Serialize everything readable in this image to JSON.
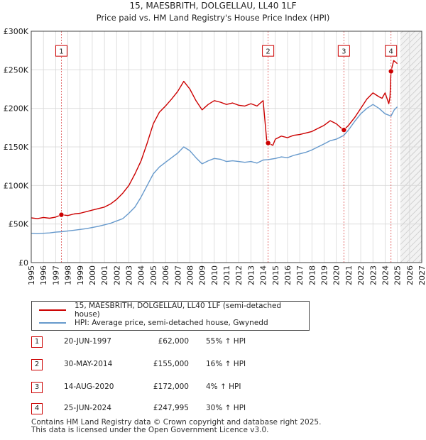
{
  "chart_data": {
    "type": "line",
    "title": "15, MAESBRITH, DOLGELLAU, LL40 1LF",
    "subtitle": "Price paid vs. HM Land Registry's House Price Index (HPI)",
    "xlim": [
      1995,
      2027
    ],
    "ylim": [
      0,
      300000
    ],
    "x_ticks": [
      1995,
      1996,
      1997,
      1998,
      1999,
      2000,
      2001,
      2002,
      2003,
      2004,
      2005,
      2006,
      2007,
      2008,
      2009,
      2010,
      2011,
      2012,
      2013,
      2014,
      2015,
      2016,
      2017,
      2018,
      2019,
      2020,
      2021,
      2022,
      2023,
      2024,
      2025,
      2026,
      2027
    ],
    "y_ticks": [
      0,
      50000,
      100000,
      150000,
      200000,
      250000,
      300000
    ],
    "y_tick_labels": [
      "£0",
      "£50K",
      "£100K",
      "£150K",
      "£200K",
      "£250K",
      "£300K"
    ],
    "forecast_start": 2025.25,
    "grid": true,
    "series": [
      {
        "name": "15, MAESBRITH, DOLGELLAU, LL40 1LF (semi-detached house)",
        "color": "#cc0000",
        "points": [
          [
            1995.0,
            58000
          ],
          [
            1995.5,
            57000
          ],
          [
            1996.0,
            58500
          ],
          [
            1996.5,
            57500
          ],
          [
            1997.0,
            59000
          ],
          [
            1997.47,
            62000
          ],
          [
            1998.0,
            61000
          ],
          [
            1998.5,
            63000
          ],
          [
            1999.0,
            64000
          ],
          [
            1999.5,
            66000
          ],
          [
            2000.0,
            68000
          ],
          [
            2000.5,
            70000
          ],
          [
            2001.0,
            72000
          ],
          [
            2001.5,
            76000
          ],
          [
            2002.0,
            82000
          ],
          [
            2002.5,
            90000
          ],
          [
            2003.0,
            100000
          ],
          [
            2003.5,
            115000
          ],
          [
            2004.0,
            132000
          ],
          [
            2004.5,
            155000
          ],
          [
            2005.0,
            180000
          ],
          [
            2005.5,
            195000
          ],
          [
            2006.0,
            203000
          ],
          [
            2006.5,
            212000
          ],
          [
            2007.0,
            222000
          ],
          [
            2007.5,
            235000
          ],
          [
            2008.0,
            225000
          ],
          [
            2008.5,
            210000
          ],
          [
            2009.0,
            198000
          ],
          [
            2009.5,
            205000
          ],
          [
            2010.0,
            210000
          ],
          [
            2010.5,
            208000
          ],
          [
            2011.0,
            205000
          ],
          [
            2011.5,
            207000
          ],
          [
            2012.0,
            204000
          ],
          [
            2012.5,
            203000
          ],
          [
            2013.0,
            206000
          ],
          [
            2013.5,
            203000
          ],
          [
            2014.0,
            210000
          ],
          [
            2014.3,
            158000
          ],
          [
            2014.41,
            155000
          ],
          [
            2014.8,
            152000
          ],
          [
            2015.0,
            160000
          ],
          [
            2015.5,
            164000
          ],
          [
            2016.0,
            162000
          ],
          [
            2016.5,
            165000
          ],
          [
            2017.0,
            166000
          ],
          [
            2017.5,
            168000
          ],
          [
            2018.0,
            170000
          ],
          [
            2018.5,
            174000
          ],
          [
            2019.0,
            178000
          ],
          [
            2019.5,
            184000
          ],
          [
            2020.0,
            180000
          ],
          [
            2020.5,
            173000
          ],
          [
            2020.62,
            172000
          ],
          [
            2021.0,
            178000
          ],
          [
            2021.5,
            188000
          ],
          [
            2022.0,
            200000
          ],
          [
            2022.5,
            212000
          ],
          [
            2023.0,
            220000
          ],
          [
            2023.5,
            215000
          ],
          [
            2023.75,
            213000
          ],
          [
            2024.0,
            220000
          ],
          [
            2024.3,
            206000
          ],
          [
            2024.4,
            215000
          ],
          [
            2024.48,
            247995
          ],
          [
            2024.7,
            262000
          ],
          [
            2025.0,
            258000
          ]
        ]
      },
      {
        "name": "HPI: Average price, semi-detached house, Gwynedd",
        "color": "#6699cc",
        "points": [
          [
            1995.0,
            38000
          ],
          [
            1995.5,
            37500
          ],
          [
            1996.0,
            38000
          ],
          [
            1996.5,
            38500
          ],
          [
            1997.0,
            39500
          ],
          [
            1997.47,
            40000
          ],
          [
            1998.0,
            41000
          ],
          [
            1998.5,
            42000
          ],
          [
            1999.0,
            43000
          ],
          [
            1999.5,
            44000
          ],
          [
            2000.0,
            45500
          ],
          [
            2000.5,
            47000
          ],
          [
            2001.0,
            49000
          ],
          [
            2001.5,
            51000
          ],
          [
            2002.0,
            54000
          ],
          [
            2002.5,
            57000
          ],
          [
            2003.0,
            64000
          ],
          [
            2003.5,
            72000
          ],
          [
            2004.0,
            85000
          ],
          [
            2004.5,
            100000
          ],
          [
            2005.0,
            115000
          ],
          [
            2005.5,
            124000
          ],
          [
            2006.0,
            130000
          ],
          [
            2006.5,
            136000
          ],
          [
            2007.0,
            142000
          ],
          [
            2007.5,
            150000
          ],
          [
            2008.0,
            145000
          ],
          [
            2008.5,
            136000
          ],
          [
            2009.0,
            128000
          ],
          [
            2009.5,
            132000
          ],
          [
            2010.0,
            135000
          ],
          [
            2010.5,
            134000
          ],
          [
            2011.0,
            131000
          ],
          [
            2011.5,
            132000
          ],
          [
            2012.0,
            131000
          ],
          [
            2012.5,
            130000
          ],
          [
            2013.0,
            131000
          ],
          [
            2013.5,
            129000
          ],
          [
            2014.0,
            133000
          ],
          [
            2014.41,
            133500
          ],
          [
            2015.0,
            135000
          ],
          [
            2015.5,
            137000
          ],
          [
            2016.0,
            136000
          ],
          [
            2016.5,
            139000
          ],
          [
            2017.0,
            141000
          ],
          [
            2017.5,
            143000
          ],
          [
            2018.0,
            146000
          ],
          [
            2018.5,
            150000
          ],
          [
            2019.0,
            154000
          ],
          [
            2019.5,
            158000
          ],
          [
            2020.0,
            160000
          ],
          [
            2020.62,
            165000
          ],
          [
            2021.0,
            172000
          ],
          [
            2021.5,
            183000
          ],
          [
            2022.0,
            193000
          ],
          [
            2022.5,
            200000
          ],
          [
            2023.0,
            205000
          ],
          [
            2023.5,
            200000
          ],
          [
            2024.0,
            193000
          ],
          [
            2024.48,
            190000
          ],
          [
            2024.75,
            198000
          ],
          [
            2025.0,
            202000
          ]
        ]
      }
    ],
    "sales": [
      {
        "id": "1",
        "year": 1997.47,
        "price": 62000
      },
      {
        "id": "2",
        "year": 2014.41,
        "price": 155000
      },
      {
        "id": "3",
        "year": 2020.62,
        "price": 172000
      },
      {
        "id": "4",
        "year": 2024.48,
        "price": 247995
      }
    ],
    "annotation_y": 275000
  },
  "legend": {
    "items": [
      {
        "label": "15, MAESBRITH, DOLGELLAU, LL40 1LF (semi-detached house)",
        "color": "#cc0000"
      },
      {
        "label": "HPI: Average price, semi-detached house, Gwynedd",
        "color": "#6699cc"
      }
    ]
  },
  "sales_table": [
    {
      "num": "1",
      "date": "20-JUN-1997",
      "price": "£62,000",
      "hpi": "55% ↑ HPI"
    },
    {
      "num": "2",
      "date": "30-MAY-2014",
      "price": "£155,000",
      "hpi": "16% ↑ HPI"
    },
    {
      "num": "3",
      "date": "14-AUG-2020",
      "price": "£172,000",
      "hpi": "4% ↑ HPI"
    },
    {
      "num": "4",
      "date": "25-JUN-2024",
      "price": "£247,995",
      "hpi": "30% ↑ HPI"
    }
  ],
  "footer": {
    "line1": "Contains HM Land Registry data © Crown copyright and database right 2025.",
    "line2": "This data is licensed under the Open Government Licence v3.0."
  }
}
